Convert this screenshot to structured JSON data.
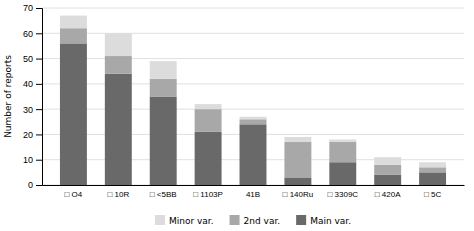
{
  "chart_data": {
    "type": "bar",
    "stacked": true,
    "categories": [
      "□ O4",
      "□ 10R",
      "□ <5BB",
      "□ 1103P",
      "41B",
      "□ 140Ru",
      "□ 3309C",
      "□ 420A",
      "□ 5C"
    ],
    "series": [
      {
        "name": "Main var.",
        "color": "#696969",
        "values": [
          56,
          44,
          35,
          21,
          24,
          3,
          9,
          4,
          5
        ]
      },
      {
        "name": "2nd var.",
        "color": "#a8a8a8",
        "values": [
          6,
          7,
          7,
          9,
          2,
          14,
          8,
          4,
          2
        ]
      },
      {
        "name": "Minor var.",
        "color": "#dcdcdc",
        "values": [
          5,
          9,
          7,
          2,
          1,
          2,
          1,
          3,
          2
        ]
      }
    ],
    "ylabel": "Number of reports",
    "ylim": [
      0,
      70
    ],
    "yticks": [
      0,
      10,
      20,
      30,
      40,
      50,
      60,
      70
    ],
    "grid": true,
    "legend": "bottom"
  }
}
